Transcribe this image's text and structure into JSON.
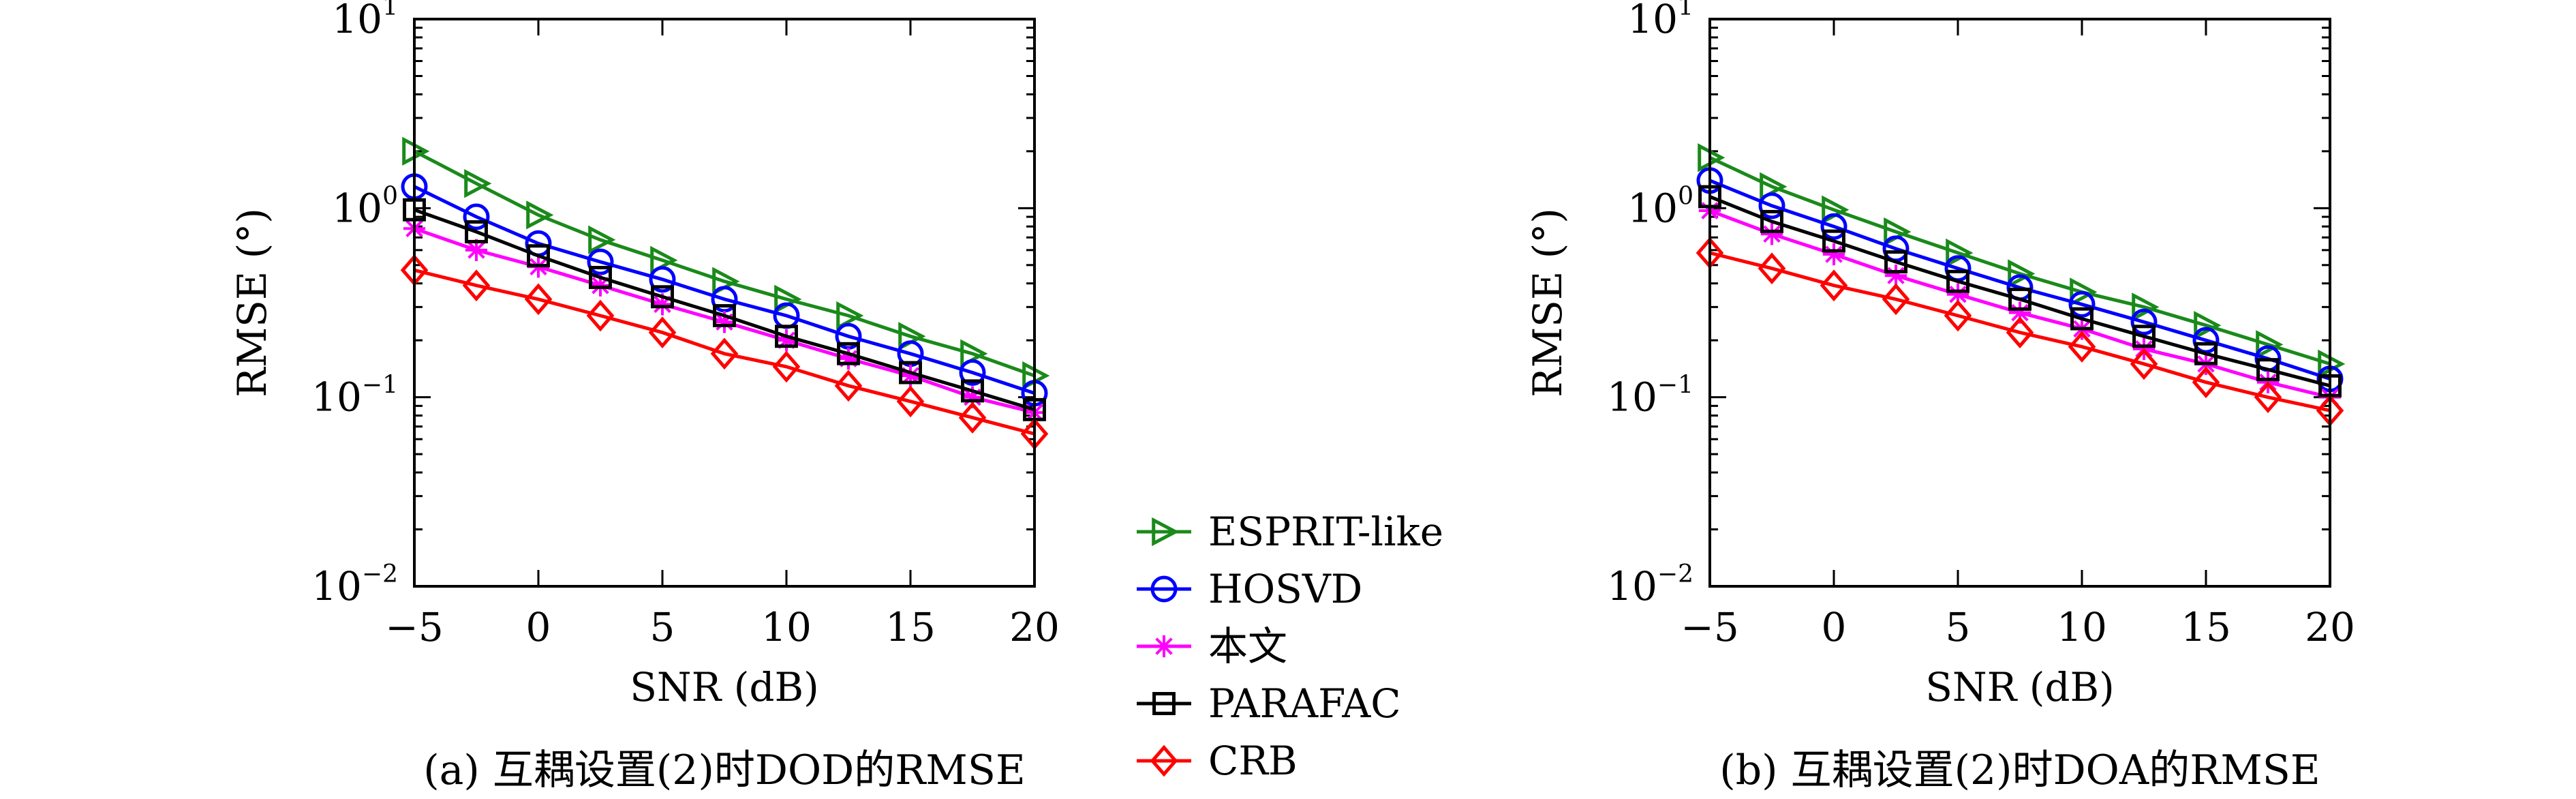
{
  "chart_data": [
    {
      "type": "line",
      "caption": "(a) 互耦设置(2)时DOD的RMSE",
      "xlabel": "SNR (dB)",
      "ylabel": "RMSE (°)",
      "yscale": "log",
      "xlim": [
        -5,
        20
      ],
      "ylim": [
        0.01,
        10
      ],
      "xticks": [
        -5,
        0,
        5,
        10,
        15,
        20
      ],
      "xtick_labels": [
        "−5",
        "0",
        "5",
        "10",
        "15",
        "20"
      ],
      "yticks": [
        0.01,
        0.1,
        1,
        10
      ],
      "ytick_labels": [
        [
          "10",
          "−2"
        ],
        [
          "10",
          "−1"
        ],
        [
          "10",
          "0"
        ],
        [
          "10",
          "1"
        ]
      ],
      "grid": false,
      "x": [
        -5,
        -2.5,
        0,
        2.5,
        5,
        7.5,
        10,
        12.5,
        15,
        17.5,
        20
      ],
      "series": [
        {
          "name": "ESPRIT-like",
          "color": "#1a8a1a",
          "marker": "triangle-right",
          "values": [
            2.0,
            1.35,
            0.92,
            0.68,
            0.53,
            0.41,
            0.33,
            0.27,
            0.21,
            0.17,
            0.13
          ]
        },
        {
          "name": "HOSVD",
          "color": "#0000ff",
          "marker": "circle",
          "values": [
            1.3,
            0.9,
            0.65,
            0.52,
            0.42,
            0.33,
            0.27,
            0.21,
            0.17,
            0.135,
            0.105
          ]
        },
        {
          "name": "本文",
          "color": "#ff00ff",
          "marker": "asterisk",
          "values": [
            0.78,
            0.6,
            0.49,
            0.39,
            0.31,
            0.25,
            0.2,
            0.16,
            0.13,
            0.1,
            0.083
          ]
        },
        {
          "name": "PARAFAC",
          "color": "#000000",
          "marker": "square",
          "values": [
            0.98,
            0.75,
            0.56,
            0.43,
            0.34,
            0.27,
            0.21,
            0.17,
            0.135,
            0.108,
            0.086
          ]
        },
        {
          "name": "CRB",
          "color": "#ff0000",
          "marker": "diamond",
          "values": [
            0.47,
            0.39,
            0.33,
            0.27,
            0.22,
            0.17,
            0.145,
            0.115,
            0.095,
            0.078,
            0.064
          ]
        }
      ]
    },
    {
      "type": "line",
      "caption": "(b) 互耦设置(2)时DOA的RMSE",
      "xlabel": "SNR (dB)",
      "ylabel": "RMSE (°)",
      "yscale": "log",
      "xlim": [
        -5,
        20
      ],
      "ylim": [
        0.01,
        10
      ],
      "xticks": [
        -5,
        0,
        5,
        10,
        15,
        20
      ],
      "xtick_labels": [
        "−5",
        "0",
        "5",
        "10",
        "15",
        "20"
      ],
      "yticks": [
        0.01,
        0.1,
        1,
        10
      ],
      "ytick_labels": [
        [
          "10",
          "−2"
        ],
        [
          "10",
          "−1"
        ],
        [
          "10",
          "0"
        ],
        [
          "10",
          "1"
        ]
      ],
      "grid": false,
      "x": [
        -5,
        -2.5,
        0,
        2.5,
        5,
        7.5,
        10,
        12.5,
        15,
        17.5,
        20
      ],
      "series": [
        {
          "name": "ESPRIT-like",
          "color": "#1a8a1a",
          "marker": "triangle-right",
          "values": [
            1.85,
            1.3,
            0.98,
            0.75,
            0.58,
            0.45,
            0.36,
            0.3,
            0.24,
            0.19,
            0.15
          ]
        },
        {
          "name": "HOSVD",
          "color": "#0000ff",
          "marker": "circle",
          "values": [
            1.4,
            1.03,
            0.8,
            0.61,
            0.48,
            0.38,
            0.31,
            0.25,
            0.2,
            0.16,
            0.125
          ]
        },
        {
          "name": "本文",
          "color": "#ff00ff",
          "marker": "asterisk",
          "values": [
            0.97,
            0.73,
            0.57,
            0.44,
            0.35,
            0.28,
            0.23,
            0.18,
            0.15,
            0.12,
            0.1
          ]
        },
        {
          "name": "PARAFAC",
          "color": "#000000",
          "marker": "square",
          "values": [
            1.15,
            0.85,
            0.67,
            0.52,
            0.41,
            0.33,
            0.26,
            0.21,
            0.17,
            0.14,
            0.115
          ]
        },
        {
          "name": "CRB",
          "color": "#ff0000",
          "marker": "diamond",
          "values": [
            0.58,
            0.48,
            0.39,
            0.33,
            0.27,
            0.22,
            0.185,
            0.15,
            0.12,
            0.1,
            0.085
          ]
        }
      ]
    }
  ],
  "legend": {
    "placement": "bottom-center",
    "entries": [
      "ESPRIT-like",
      "HOSVD",
      "本文",
      "PARAFAC",
      "CRB"
    ]
  }
}
